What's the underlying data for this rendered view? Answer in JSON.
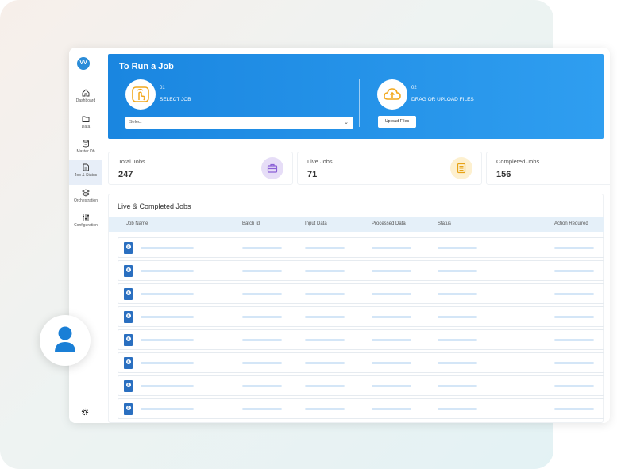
{
  "logo_text": "VV",
  "sidebar": {
    "items": [
      {
        "label": "Dashboard",
        "icon": "home-icon"
      },
      {
        "label": "Data",
        "icon": "folder-icon"
      },
      {
        "label": "Master Db",
        "icon": "database-icon"
      },
      {
        "label": "Job & Status",
        "icon": "document-icon",
        "active": true
      },
      {
        "label": "Orchestration",
        "icon": "layers-icon"
      },
      {
        "label": "Configuration",
        "icon": "sliders-icon"
      }
    ],
    "settings_icon": "gear-icon"
  },
  "hero": {
    "title": "To Run a Job",
    "step1": {
      "number": "01",
      "label": "SELECT JOB",
      "icon": "touch-icon"
    },
    "step2": {
      "number": "02",
      "label": "DRAG OR UPLOAD FILES",
      "icon": "cloud-upload-icon"
    },
    "select_placeholder": "Select",
    "upload_label": "Upload Files"
  },
  "stats": [
    {
      "label": "Total Jobs",
      "value": "247",
      "icon": "briefcase-icon",
      "color": "#e6ddf7"
    },
    {
      "label": "Live Jobs",
      "value": "71",
      "icon": "list-icon",
      "color": "#fdf0cf"
    },
    {
      "label": "Completed Jobs",
      "value": "156"
    }
  ],
  "table": {
    "title": "Live & Completed Jobs",
    "columns": [
      "Job Name",
      "Batch Id",
      "Input Data",
      "Processed Data",
      "Status",
      "Action Required"
    ],
    "rows": [
      {
        "badge": "D"
      },
      {
        "badge": "B"
      },
      {
        "badge": "B"
      },
      {
        "badge": "B"
      },
      {
        "badge": "B"
      },
      {
        "badge": "B"
      },
      {
        "badge": "B"
      },
      {
        "badge": "D"
      }
    ]
  },
  "colors": {
    "accent": "#1a86e0",
    "skeleton": "#d4e6f7",
    "table_header": "#e5f0f9"
  }
}
